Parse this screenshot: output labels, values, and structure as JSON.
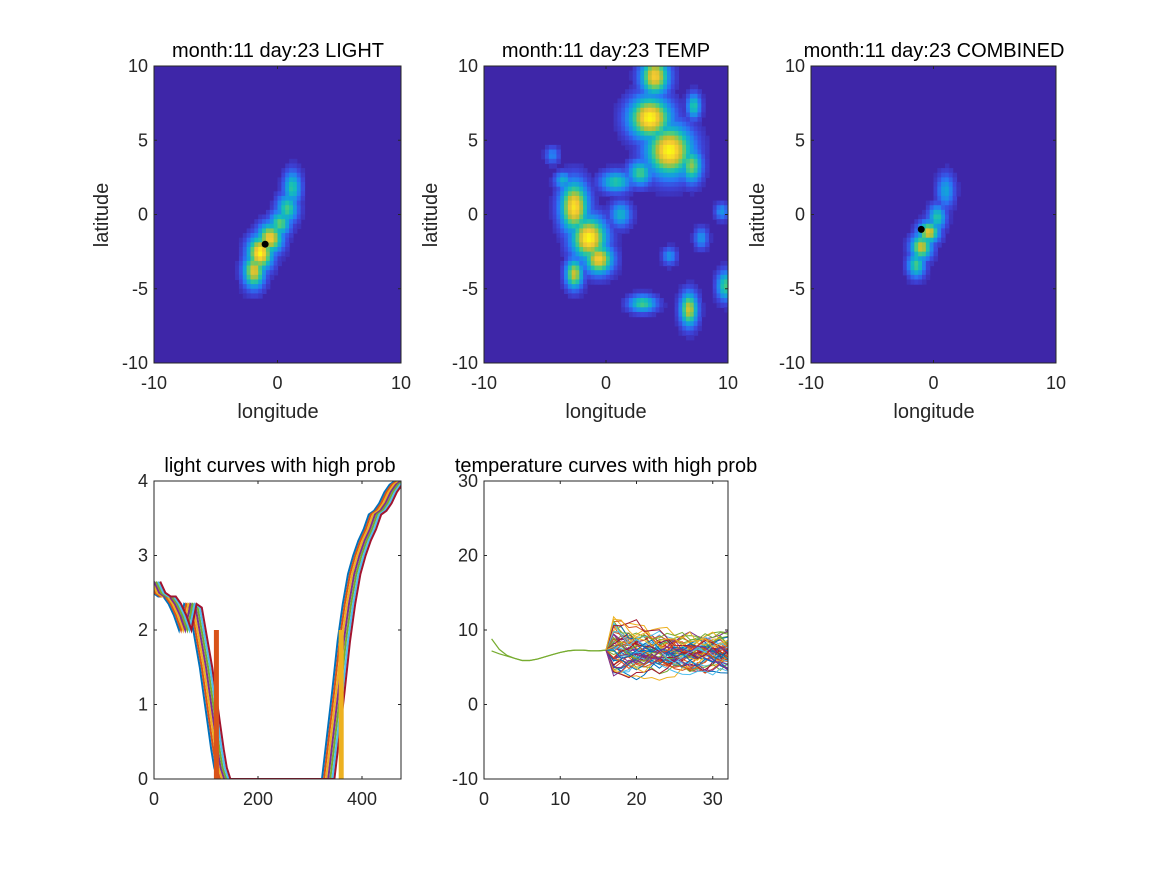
{
  "figure": {
    "background": "#ffffff"
  },
  "chart_data": [
    {
      "id": "light-map",
      "type": "heatmap",
      "title": "month:11  day:23 LIGHT",
      "xlabel": "longitude",
      "ylabel": "latitude",
      "xlim": [
        -10,
        10
      ],
      "ylim": [
        -10,
        10
      ],
      "xticks": [
        -10,
        0,
        10
      ],
      "yticks": [
        -10,
        -5,
        0,
        5,
        10
      ],
      "background_color": "#3e26a8",
      "blobs": [
        {
          "x": 1.2,
          "y": 1.8,
          "sx": 0.5,
          "sy": 0.8,
          "a": 0.55
        },
        {
          "x": 0.8,
          "y": 0.4,
          "sx": 0.6,
          "sy": 0.7,
          "a": 0.6
        },
        {
          "x": 0.2,
          "y": -0.6,
          "sx": 0.6,
          "sy": 0.6,
          "a": 0.65
        },
        {
          "x": -0.6,
          "y": -1.6,
          "sx": 0.7,
          "sy": 0.7,
          "a": 0.9
        },
        {
          "x": -1.4,
          "y": -2.6,
          "sx": 0.7,
          "sy": 0.8,
          "a": 1.0
        },
        {
          "x": -1.9,
          "y": -3.8,
          "sx": 0.6,
          "sy": 0.8,
          "a": 0.85
        }
      ],
      "marker": {
        "x": -1.0,
        "y": -2.0
      }
    },
    {
      "id": "temp-map",
      "type": "heatmap",
      "title": "month:11  day:23 TEMP",
      "xlabel": "longitude",
      "ylabel": "latitude",
      "xlim": [
        -10,
        10
      ],
      "ylim": [
        -10,
        10
      ],
      "xticks": [
        -10,
        0,
        10
      ],
      "yticks": [
        -10,
        -5,
        0,
        5,
        10
      ],
      "background_color": "#3e26a8",
      "blobs": [
        {
          "x": 4.0,
          "y": 9.3,
          "sx": 0.8,
          "sy": 0.9,
          "a": 0.9
        },
        {
          "x": 3.6,
          "y": 6.5,
          "sx": 1.2,
          "sy": 1.0,
          "a": 1.0
        },
        {
          "x": 5.2,
          "y": 4.3,
          "sx": 1.3,
          "sy": 1.2,
          "a": 1.0
        },
        {
          "x": 7.0,
          "y": 3.3,
          "sx": 0.6,
          "sy": 0.8,
          "a": 0.7
        },
        {
          "x": 7.2,
          "y": 7.3,
          "sx": 0.4,
          "sy": 0.6,
          "a": 0.55
        },
        {
          "x": 2.8,
          "y": 2.8,
          "sx": 0.7,
          "sy": 0.6,
          "a": 0.6
        },
        {
          "x": 0.8,
          "y": 2.2,
          "sx": 0.9,
          "sy": 0.5,
          "a": 0.55
        },
        {
          "x": -3.5,
          "y": 2.3,
          "sx": 0.5,
          "sy": 0.4,
          "a": 0.45
        },
        {
          "x": -2.6,
          "y": 0.5,
          "sx": 0.8,
          "sy": 1.2,
          "a": 0.95
        },
        {
          "x": -1.4,
          "y": -1.6,
          "sx": 1.0,
          "sy": 1.0,
          "a": 1.0
        },
        {
          "x": -0.6,
          "y": -3.0,
          "sx": 0.8,
          "sy": 0.7,
          "a": 0.9
        },
        {
          "x": -2.6,
          "y": -4.0,
          "sx": 0.5,
          "sy": 0.7,
          "a": 0.8
        },
        {
          "x": 1.2,
          "y": 0.0,
          "sx": 0.6,
          "sy": 0.6,
          "a": 0.45
        },
        {
          "x": 3.0,
          "y": -6.0,
          "sx": 0.8,
          "sy": 0.4,
          "a": 0.6
        },
        {
          "x": 6.8,
          "y": -6.4,
          "sx": 0.5,
          "sy": 0.8,
          "a": 0.8
        },
        {
          "x": 9.8,
          "y": -4.8,
          "sx": 0.5,
          "sy": 0.7,
          "a": 0.6
        },
        {
          "x": 5.2,
          "y": -2.8,
          "sx": 0.4,
          "sy": 0.4,
          "a": 0.35
        },
        {
          "x": 7.8,
          "y": -1.6,
          "sx": 0.4,
          "sy": 0.5,
          "a": 0.35
        },
        {
          "x": 9.5,
          "y": 0.2,
          "sx": 0.4,
          "sy": 0.4,
          "a": 0.35
        },
        {
          "x": -4.4,
          "y": 4.0,
          "sx": 0.4,
          "sy": 0.4,
          "a": 0.3
        }
      ]
    },
    {
      "id": "combined-map",
      "type": "heatmap",
      "title": "month:11  day:23 COMBINED",
      "xlabel": "longitude",
      "ylabel": "latitude",
      "xlim": [
        -10,
        10
      ],
      "ylim": [
        -10,
        10
      ],
      "xticks": [
        -10,
        0,
        10
      ],
      "yticks": [
        -10,
        -5,
        0,
        5,
        10
      ],
      "background_color": "#3e26a8",
      "blobs": [
        {
          "x": 1.0,
          "y": 1.6,
          "sx": 0.5,
          "sy": 0.8,
          "a": 0.4
        },
        {
          "x": 0.3,
          "y": -0.2,
          "sx": 0.5,
          "sy": 0.6,
          "a": 0.55
        },
        {
          "x": -0.4,
          "y": -1.2,
          "sx": 0.6,
          "sy": 0.5,
          "a": 0.85
        },
        {
          "x": -1.0,
          "y": -2.2,
          "sx": 0.6,
          "sy": 0.6,
          "a": 0.8
        },
        {
          "x": -1.4,
          "y": -3.4,
          "sx": 0.5,
          "sy": 0.6,
          "a": 0.6
        }
      ],
      "marker": {
        "x": -1.0,
        "y": -1.0
      }
    },
    {
      "id": "light-curves",
      "type": "line",
      "title": "light curves with high prob",
      "xlim": [
        0,
        475
      ],
      "ylim": [
        0,
        4
      ],
      "xticks": [
        0,
        200,
        400
      ],
      "yticks": [
        0,
        1,
        2,
        3,
        4
      ],
      "base_curve": {
        "x": [
          0,
          10,
          20,
          30,
          40,
          50,
          60,
          70,
          80,
          90,
          100,
          108,
          115,
          122,
          128,
          135,
          140,
          200,
          260,
          320,
          335,
          345,
          355,
          365,
          375,
          385,
          395,
          405,
          415,
          425,
          435,
          445,
          455,
          465,
          475
        ],
        "y": [
          2.65,
          2.5,
          2.45,
          2.45,
          2.35,
          2.2,
          2.0,
          2.35,
          2.3,
          1.9,
          1.5,
          1.1,
          0.75,
          0.4,
          0.15,
          0.0,
          0.0,
          0.0,
          0.0,
          0.0,
          0.0,
          0.6,
          1.2,
          1.85,
          2.35,
          2.75,
          3.0,
          3.2,
          3.35,
          3.55,
          3.6,
          3.7,
          3.85,
          3.95,
          4.0
        ]
      },
      "curve_offsets": [
        -12,
        -8,
        -4,
        0,
        4,
        8,
        12
      ],
      "curve_colors": [
        "#0072bd",
        "#d95319",
        "#edb120",
        "#7e2f8e",
        "#77ac30",
        "#4dbeee",
        "#a2142f"
      ],
      "markers": [
        {
          "x": 120,
          "y0": 0,
          "y1": 2,
          "color": "#d95319"
        },
        {
          "x": 360,
          "y0": 0,
          "y1": 2,
          "color": "#edb120"
        }
      ]
    },
    {
      "id": "temp-curves",
      "type": "line",
      "title": "temperature curves with high prob",
      "xlim": [
        0,
        32
      ],
      "ylim": [
        -10,
        30
      ],
      "xticks": [
        0,
        10,
        20,
        30
      ],
      "yticks": [
        -10,
        0,
        10,
        20,
        30
      ],
      "shared_prefix": {
        "x": [
          1,
          2,
          3,
          4,
          5,
          6,
          7,
          8,
          9,
          10,
          11,
          12,
          13,
          14,
          15,
          16
        ],
        "y": [
          8.8,
          7.4,
          6.6,
          6.2,
          5.9,
          5.9,
          6.1,
          6.4,
          6.7,
          7.0,
          7.2,
          7.3,
          7.3,
          7.2,
          7.2,
          7.3
        ],
        "y_alt": [
          7.2,
          6.8,
          6.5,
          6.2,
          5.9,
          5.9,
          6.1,
          6.4,
          6.7,
          7.0,
          7.2,
          7.3,
          7.3,
          7.2,
          7.2,
          7.3
        ]
      },
      "spread": {
        "x_start": 16,
        "x_end": 32,
        "center": 7.0,
        "min": 2.8,
        "max": 12.2,
        "n_curves": 60
      },
      "curve_colors": [
        "#0072bd",
        "#d95319",
        "#edb120",
        "#7e2f8e",
        "#77ac30",
        "#4dbeee",
        "#a2142f"
      ]
    }
  ]
}
